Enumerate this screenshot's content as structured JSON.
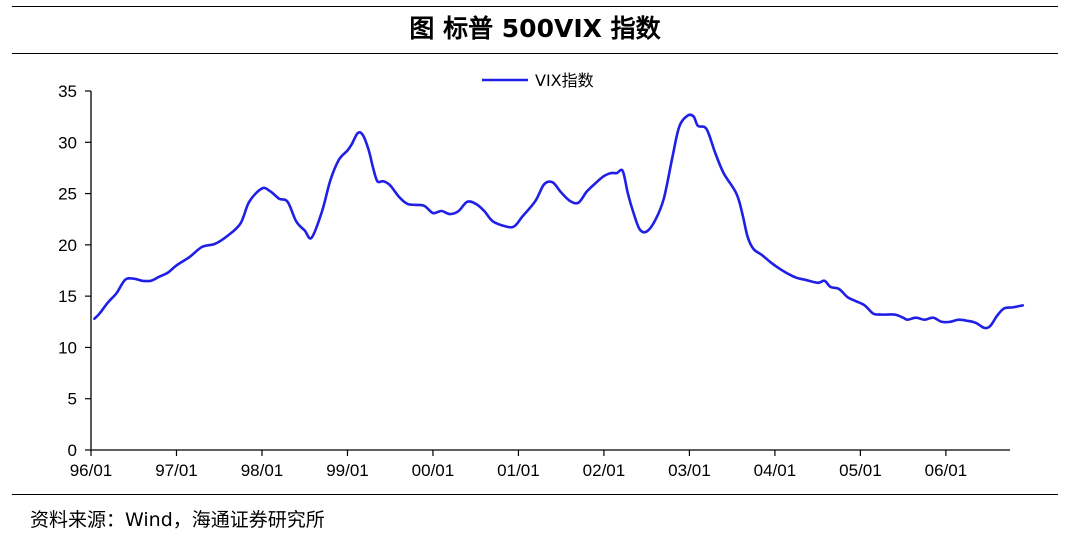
{
  "figure": {
    "title": "图  标普 500VIX 指数",
    "source": "资料来源：Wind，海通证券研究所"
  },
  "chart_data": {
    "type": "line",
    "title": "图  标普 500VIX 指数",
    "xlabel": "",
    "ylabel": "",
    "ylim": [
      0,
      35
    ],
    "yticks": [
      0,
      5,
      10,
      15,
      20,
      25,
      30,
      35
    ],
    "xticks": [
      "96/01",
      "97/01",
      "98/01",
      "99/01",
      "00/01",
      "01/01",
      "02/01",
      "03/01",
      "04/01",
      "05/01",
      "06/01"
    ],
    "xlim": [
      1996.0,
      2006.75
    ],
    "grid": false,
    "legend_position": "top-center",
    "line_color": "#1f1fe6",
    "series": [
      {
        "name": "VIX指数",
        "points": [
          [
            1996.04,
            12.8
          ],
          [
            1996.1,
            13.3
          ],
          [
            1996.2,
            14.4
          ],
          [
            1996.3,
            15.3
          ],
          [
            1996.4,
            16.6
          ],
          [
            1996.5,
            16.7
          ],
          [
            1996.6,
            16.5
          ],
          [
            1996.7,
            16.5
          ],
          [
            1996.8,
            16.9
          ],
          [
            1996.9,
            17.3
          ],
          [
            1997.0,
            18.0
          ],
          [
            1997.15,
            18.8
          ],
          [
            1997.3,
            19.8
          ],
          [
            1997.45,
            20.1
          ],
          [
            1997.6,
            20.9
          ],
          [
            1997.75,
            22.1
          ],
          [
            1997.85,
            24.2
          ],
          [
            1998.0,
            25.5
          ],
          [
            1998.1,
            25.2
          ],
          [
            1998.2,
            24.5
          ],
          [
            1998.3,
            24.2
          ],
          [
            1998.4,
            22.3
          ],
          [
            1998.5,
            21.4
          ],
          [
            1998.58,
            20.7
          ],
          [
            1998.7,
            23.2
          ],
          [
            1998.8,
            26.3
          ],
          [
            1998.9,
            28.3
          ],
          [
            1999.0,
            29.2
          ],
          [
            1999.05,
            29.8
          ],
          [
            1999.12,
            30.9
          ],
          [
            1999.18,
            30.7
          ],
          [
            1999.25,
            29.2
          ],
          [
            1999.3,
            27.5
          ],
          [
            1999.35,
            26.2
          ],
          [
            1999.42,
            26.2
          ],
          [
            1999.5,
            25.8
          ],
          [
            1999.6,
            24.7
          ],
          [
            1999.7,
            24.0
          ],
          [
            1999.8,
            23.9
          ],
          [
            1999.9,
            23.8
          ],
          [
            2000.0,
            23.1
          ],
          [
            2000.1,
            23.3
          ],
          [
            2000.2,
            23.0
          ],
          [
            2000.3,
            23.3
          ],
          [
            2000.4,
            24.2
          ],
          [
            2000.5,
            24.0
          ],
          [
            2000.6,
            23.3
          ],
          [
            2000.7,
            22.3
          ],
          [
            2000.85,
            21.8
          ],
          [
            2000.95,
            21.8
          ],
          [
            2001.05,
            22.8
          ],
          [
            2001.2,
            24.3
          ],
          [
            2001.3,
            25.9
          ],
          [
            2001.4,
            26.1
          ],
          [
            2001.5,
            25.1
          ],
          [
            2001.6,
            24.3
          ],
          [
            2001.7,
            24.1
          ],
          [
            2001.8,
            25.2
          ],
          [
            2001.9,
            26.0
          ],
          [
            2002.0,
            26.7
          ],
          [
            2002.08,
            27.0
          ],
          [
            2002.15,
            27.0
          ],
          [
            2002.22,
            27.2
          ],
          [
            2002.28,
            25.0
          ],
          [
            2002.35,
            23.0
          ],
          [
            2002.42,
            21.5
          ],
          [
            2002.5,
            21.3
          ],
          [
            2002.6,
            22.4
          ],
          [
            2002.7,
            24.5
          ],
          [
            2002.8,
            28.5
          ],
          [
            2002.88,
            31.5
          ],
          [
            2002.98,
            32.6
          ],
          [
            2003.05,
            32.5
          ],
          [
            2003.1,
            31.6
          ],
          [
            2003.2,
            31.3
          ],
          [
            2003.3,
            29.0
          ],
          [
            2003.4,
            27.0
          ],
          [
            2003.55,
            25.0
          ],
          [
            2003.62,
            23.0
          ],
          [
            2003.68,
            20.8
          ],
          [
            2003.75,
            19.6
          ],
          [
            2003.85,
            19.0
          ],
          [
            2003.95,
            18.3
          ],
          [
            2004.05,
            17.7
          ],
          [
            2004.15,
            17.2
          ],
          [
            2004.25,
            16.8
          ],
          [
            2004.35,
            16.6
          ],
          [
            2004.5,
            16.3
          ],
          [
            2004.58,
            16.5
          ],
          [
            2004.65,
            15.9
          ],
          [
            2004.75,
            15.7
          ],
          [
            2004.85,
            14.9
          ],
          [
            2004.95,
            14.5
          ],
          [
            2005.05,
            14.1
          ],
          [
            2005.15,
            13.3
          ],
          [
            2005.25,
            13.2
          ],
          [
            2005.4,
            13.2
          ],
          [
            2005.5,
            12.9
          ],
          [
            2005.55,
            12.7
          ],
          [
            2005.65,
            12.9
          ],
          [
            2005.75,
            12.7
          ],
          [
            2005.85,
            12.9
          ],
          [
            2005.95,
            12.5
          ],
          [
            2006.05,
            12.5
          ],
          [
            2006.15,
            12.7
          ],
          [
            2006.25,
            12.6
          ],
          [
            2006.35,
            12.4
          ],
          [
            2006.45,
            11.9
          ],
          [
            2006.52,
            12.1
          ],
          [
            2006.6,
            13.1
          ],
          [
            2006.68,
            13.8
          ],
          [
            2006.78,
            13.9
          ],
          [
            2006.9,
            14.1
          ]
        ]
      }
    ]
  }
}
